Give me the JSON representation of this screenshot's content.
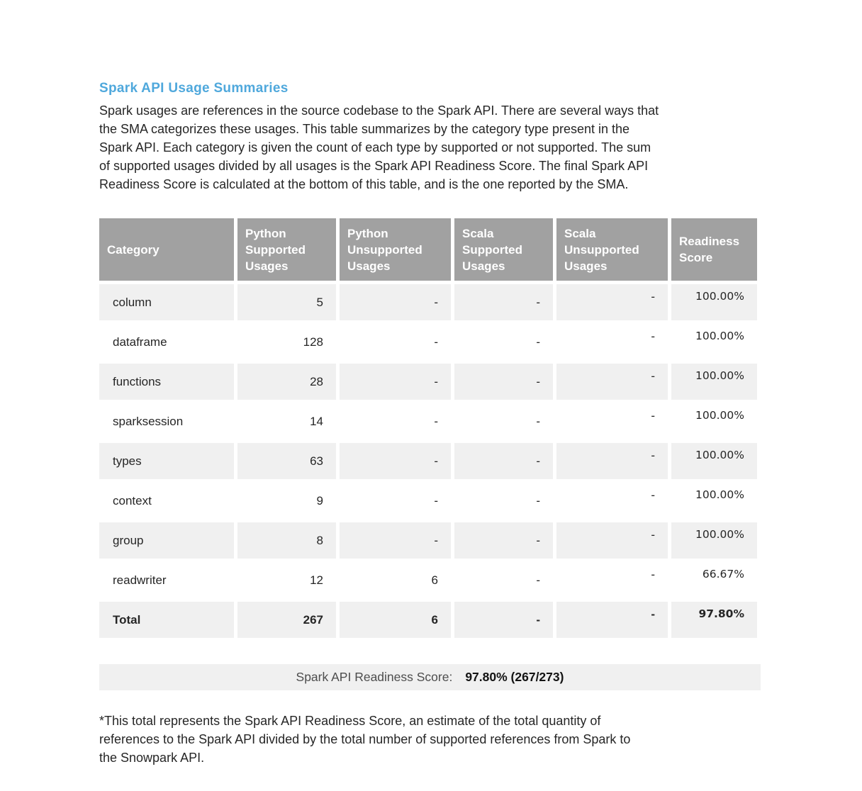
{
  "colors": {
    "accent": "#4FA8DC",
    "header_gray": "#A1A1A1",
    "stripe_gray": "#F0F0F0"
  },
  "page": {
    "title": "Spark API Usage Summaries",
    "intro_lines": [
      "Spark usages are references in the source codebase to the Spark API. There are several ways that",
      "the SMA categorizes these usages. This table summarizes by the category type present in the",
      "Spark API. Each category is given the count of each type by supported or not supported. The sum",
      "of supported usages divided by all usages is the Spark API Readiness Score. The final Spark API",
      "Readiness Score is calculated at the bottom of this table, and is the one reported by the SMA."
    ],
    "footnote_lines": [
      "*This total represents the Spark API Readiness Score, an estimate of the total quantity of",
      "references to the Spark API divided by the total number of supported references from Spark to",
      "the Snowpark API."
    ]
  },
  "table": {
    "columns": [
      "Category",
      "Python Supported Usages",
      "Python Unsupported Usages",
      "Scala Supported Usages",
      "Scala Unsupported Usages",
      "Readiness Score"
    ],
    "rows": [
      {
        "bold": false,
        "cells": [
          "column",
          "5",
          "-",
          "-",
          "-",
          "100.00%"
        ]
      },
      {
        "bold": false,
        "cells": [
          "dataframe",
          "128",
          "-",
          "-",
          "-",
          "100.00%"
        ]
      },
      {
        "bold": false,
        "cells": [
          "functions",
          "28",
          "-",
          "-",
          "-",
          "100.00%"
        ]
      },
      {
        "bold": false,
        "cells": [
          "sparksession",
          "14",
          "-",
          "-",
          "-",
          "100.00%"
        ]
      },
      {
        "bold": false,
        "cells": [
          "types",
          "63",
          "-",
          "-",
          "-",
          "100.00%"
        ]
      },
      {
        "bold": false,
        "cells": [
          "context",
          "9",
          "-",
          "-",
          "-",
          "100.00%"
        ]
      },
      {
        "bold": false,
        "cells": [
          "group",
          "8",
          "-",
          "-",
          "-",
          "100.00%"
        ]
      },
      {
        "bold": false,
        "cells": [
          "readwriter",
          "12",
          "6",
          "-",
          "-",
          "66.67%"
        ]
      },
      {
        "bold": true,
        "cells": [
          "Total",
          "267",
          "6",
          "-",
          "-",
          "97.80%"
        ]
      }
    ]
  },
  "score_bar": {
    "label": "Spark API Readiness Score:",
    "value": "97.80% (267/273)"
  }
}
